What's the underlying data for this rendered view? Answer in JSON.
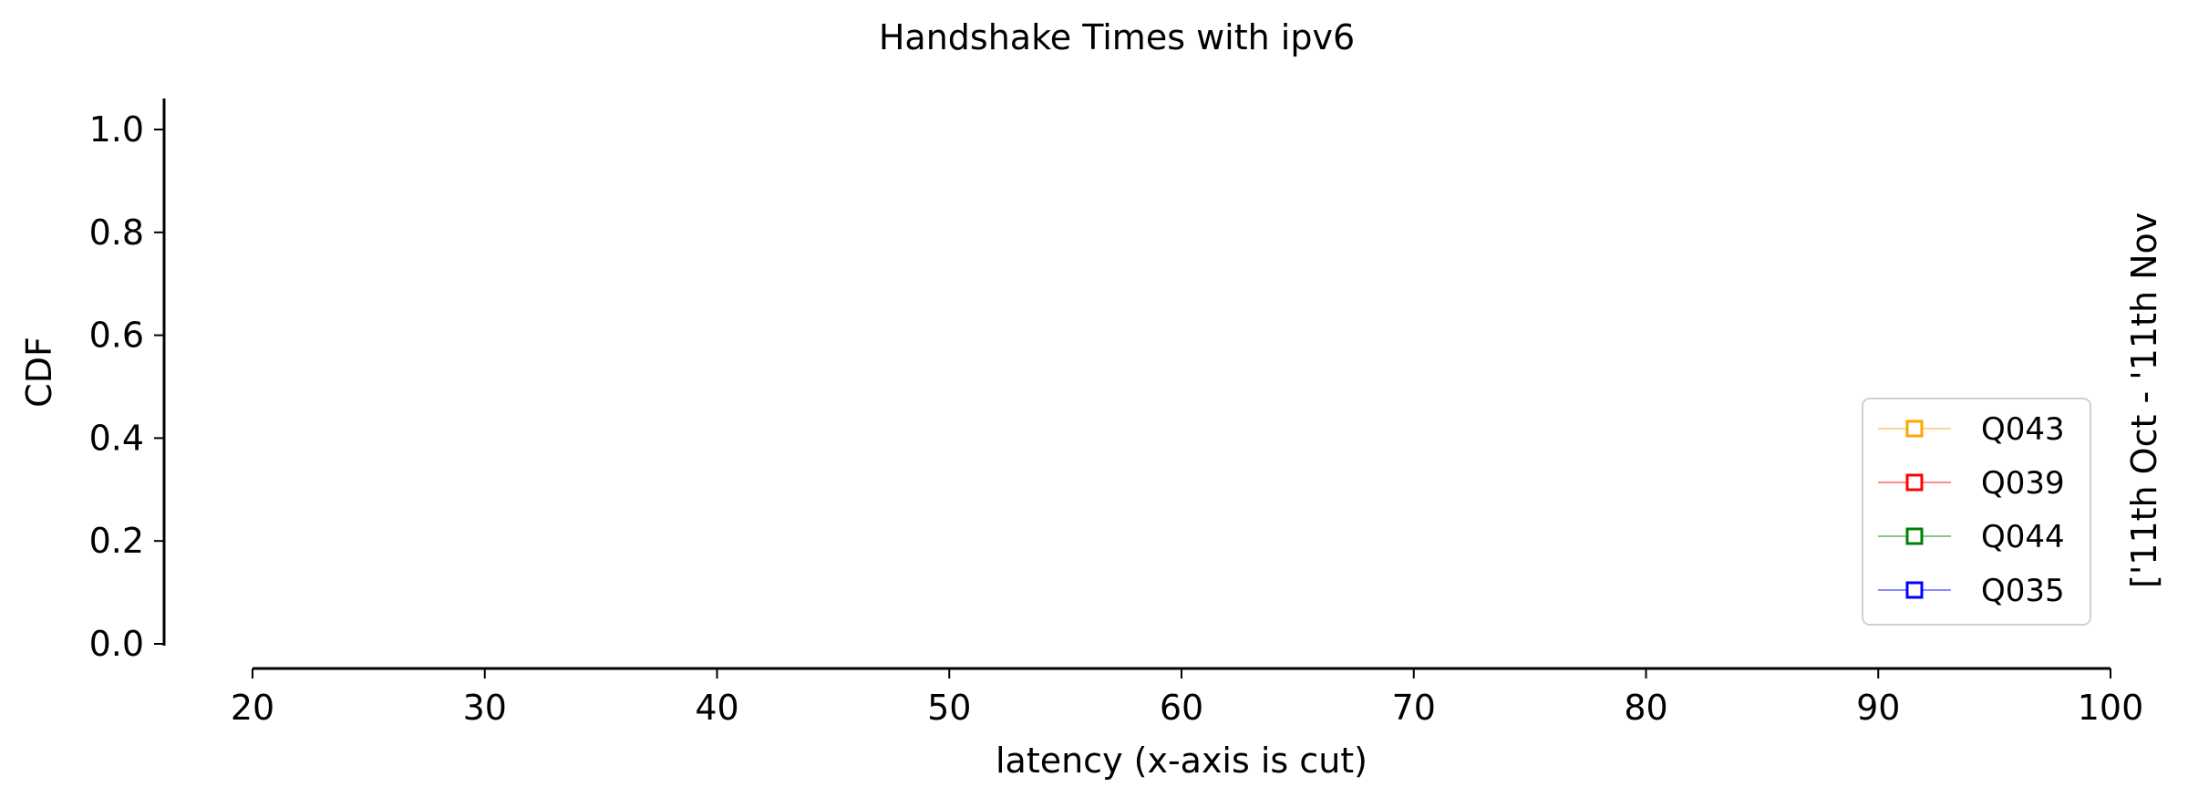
{
  "chart_data": {
    "type": "line",
    "title": "Handshake Times with ipv6",
    "xlabel": "latency (x-axis is cut)",
    "ylabel": "CDF",
    "side_label": "['11th Oct - '11th Nov",
    "xlim": [
      20,
      100
    ],
    "ylim": [
      0.0,
      1.0
    ],
    "x_ticks": [
      "20",
      "30",
      "40",
      "50",
      "60",
      "70",
      "80",
      "90",
      "100"
    ],
    "y_ticks": [
      "0.0",
      "0.2",
      "0.4",
      "0.6",
      "0.8",
      "1.0"
    ],
    "grid": false,
    "legend_position": "bottom-right",
    "series": [
      {
        "name": "Q043",
        "color": "#ffa500",
        "marker": "square",
        "points": []
      },
      {
        "name": "Q039",
        "color": "#ff0000",
        "marker": "square",
        "points": []
      },
      {
        "name": "Q044",
        "color": "#008000",
        "marker": "square",
        "points": []
      },
      {
        "name": "Q035",
        "color": "#0000ff",
        "marker": "square",
        "points": []
      }
    ]
  }
}
